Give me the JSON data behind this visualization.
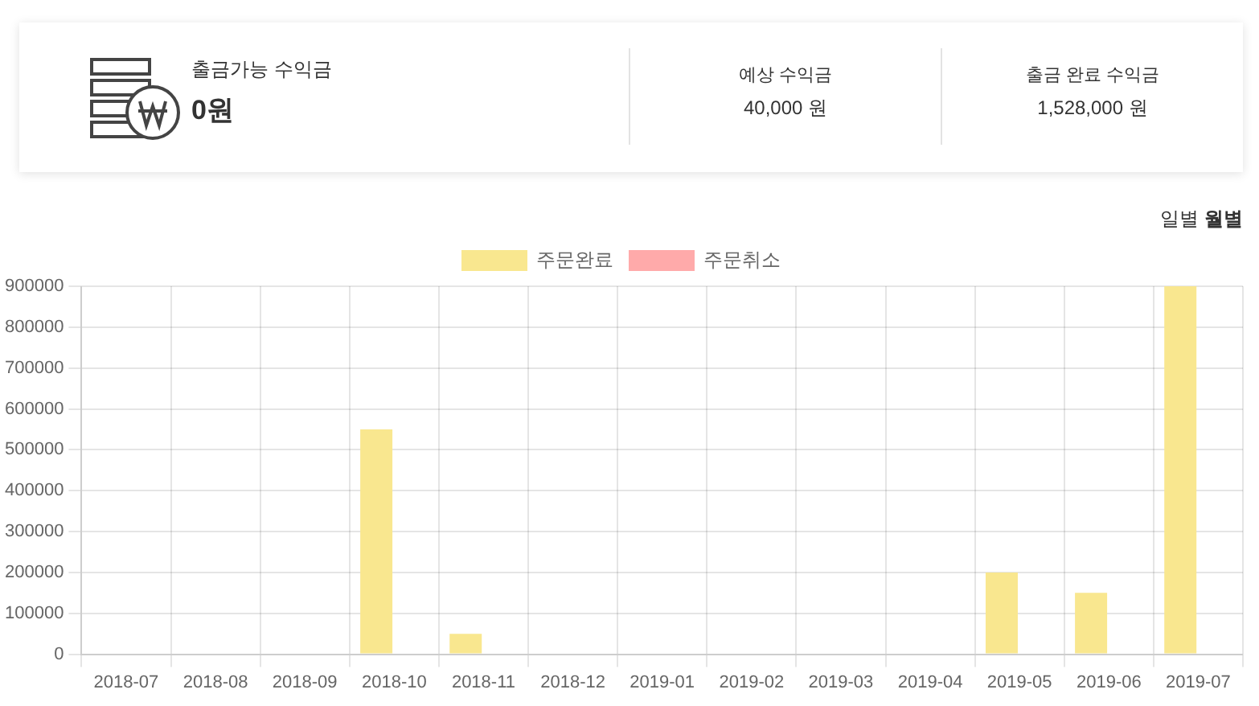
{
  "chart_data": [
    {
      "type": "other",
      "annotations": [
        "출금가능 수익금",
        "0원",
        "예상 수익금",
        "40,000 원",
        "출금 완료 수익금",
        "1,528,000 원"
      ]
    },
    {
      "type": "bar",
      "annotations": [
        "일별",
        "월별"
      ],
      "categories": [
        "2018-07",
        "2018-08",
        "2018-09",
        "2018-10",
        "2018-11",
        "2018-12",
        "2019-01",
        "2019-02",
        "2019-03",
        "2019-04",
        "2019-05",
        "2019-06",
        "2019-07"
      ],
      "series": [
        {
          "name": "주문완료",
          "color": "#f9e78f",
          "values": [
            0,
            0,
            0,
            550000,
            50000,
            0,
            0,
            0,
            0,
            0,
            200000,
            150000,
            900000
          ]
        },
        {
          "name": "주문취소",
          "color": "#ffaaaa",
          "values": [
            null,
            null,
            null,
            null,
            null,
            null,
            null,
            null,
            null,
            null,
            null,
            null,
            null
          ]
        }
      ],
      "ylim": [
        0,
        900000
      ],
      "yticks": [
        0,
        100000,
        200000,
        300000,
        400000,
        500000,
        600000,
        700000,
        800000,
        900000
      ],
      "grid": true,
      "legend": "top"
    }
  ]
}
